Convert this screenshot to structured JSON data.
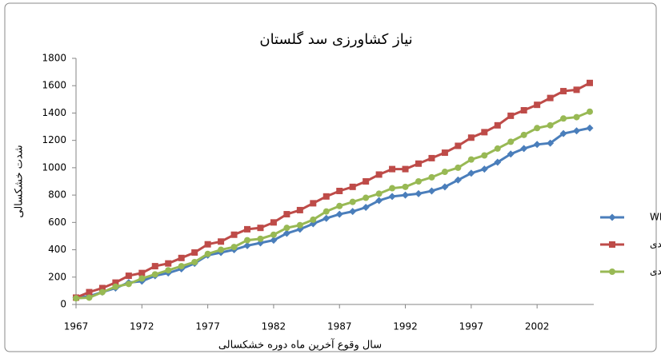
{
  "chart_data": {
    "type": "line",
    "title": "نیاز کشاورزی سد گلستان",
    "x_label": "سال وقوع آخرین ماه دوره خشکسالی",
    "y_label": "شدت خشکسالی",
    "x": [
      1967,
      1968,
      1969,
      1970,
      1971,
      1972,
      1973,
      1974,
      1975,
      1976,
      1977,
      1978,
      1979,
      1980,
      1981,
      1982,
      1983,
      1984,
      1985,
      1986,
      1987,
      1988,
      1989,
      1990,
      1991,
      1992,
      1993,
      1994,
      1995,
      1996,
      1997,
      1998,
      1999,
      2000,
      2001,
      2002,
      2003,
      2004,
      2005,
      2006
    ],
    "series": [
      {
        "name": "ساده WEAP",
        "color": "#4a7ebb",
        "marker": "diamond",
        "values": [
          50,
          60,
          90,
          120,
          160,
          170,
          210,
          230,
          260,
          300,
          360,
          380,
          400,
          430,
          450,
          470,
          520,
          550,
          590,
          630,
          660,
          680,
          710,
          760,
          790,
          800,
          810,
          830,
          860,
          910,
          960,
          990,
          1040,
          1100,
          1140,
          1170,
          1180,
          1250,
          1270,
          1290
        ]
      },
      {
        "name": "هجینگ تک سدی",
        "color": "#be4b48",
        "marker": "square",
        "values": [
          50,
          90,
          120,
          160,
          210,
          230,
          280,
          300,
          340,
          380,
          440,
          460,
          510,
          550,
          560,
          600,
          660,
          690,
          740,
          790,
          830,
          860,
          900,
          950,
          990,
          990,
          1030,
          1070,
          1110,
          1160,
          1220,
          1260,
          1310,
          1380,
          1420,
          1460,
          1510,
          1560,
          1570,
          1620
        ]
      },
      {
        "name": "هجینگ چند سدی",
        "color": "#98b954",
        "marker": "circle",
        "values": [
          45,
          50,
          90,
          130,
          150,
          190,
          220,
          250,
          280,
          310,
          370,
          400,
          420,
          470,
          480,
          510,
          560,
          580,
          620,
          680,
          720,
          750,
          780,
          810,
          850,
          860,
          900,
          930,
          970,
          1000,
          1060,
          1090,
          1140,
          1190,
          1240,
          1290,
          1310,
          1360,
          1370,
          1410
        ]
      }
    ],
    "xlim": [
      1967,
      2006
    ],
    "xticks": [
      1967,
      1972,
      1977,
      1982,
      1987,
      1992,
      1997,
      2002
    ],
    "ylim": [
      0,
      1800
    ],
    "yticks": [
      0,
      200,
      400,
      600,
      800,
      1000,
      1200,
      1400,
      1600,
      1800
    ],
    "grid": false,
    "legend": "right"
  }
}
